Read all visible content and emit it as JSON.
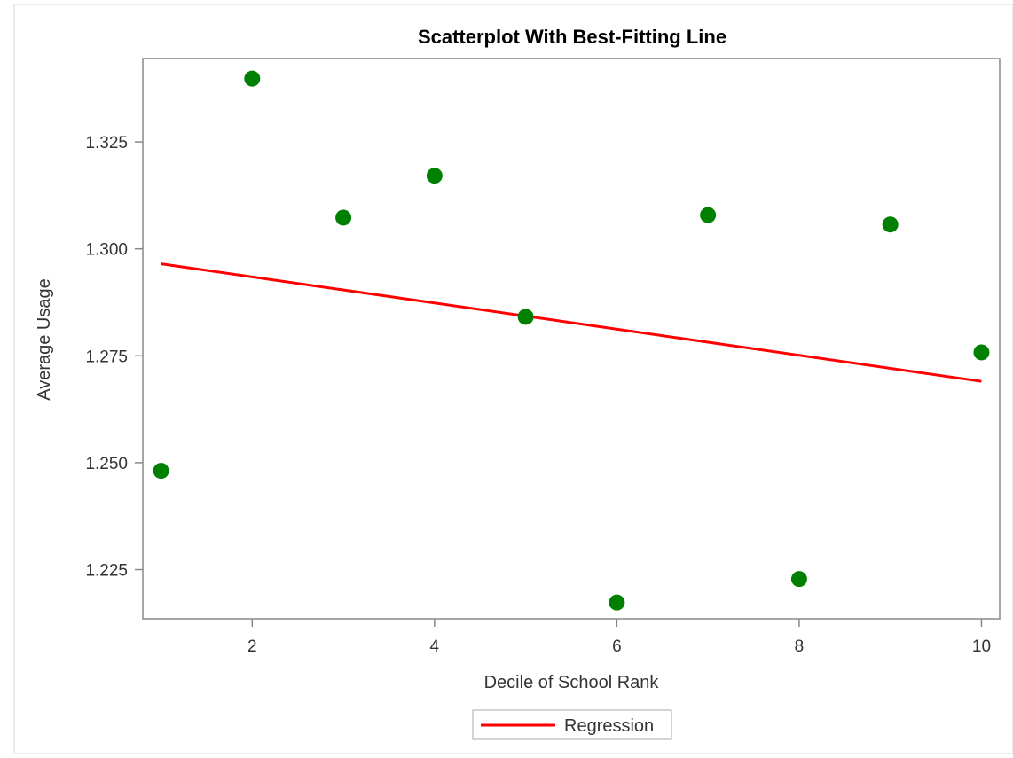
{
  "chart_data": {
    "type": "scatter",
    "title": "Scatterplot With Best-Fitting Line",
    "xlabel": "Decile of School Rank",
    "ylabel": "Average Usage",
    "xlim": [
      0.8,
      10.2
    ],
    "ylim": [
      1.2135,
      1.3445
    ],
    "x_ticks": [
      2,
      4,
      6,
      8,
      10
    ],
    "x_tick_labels": [
      "2",
      "4",
      "6",
      "8",
      "10"
    ],
    "y_ticks": [
      1.225,
      1.25,
      1.275,
      1.3,
      1.325
    ],
    "y_tick_labels": [
      "1.225",
      "1.250",
      "1.275",
      "1.300",
      "1.325"
    ],
    "grid": false,
    "legend_position": "bottom-center",
    "series": [
      {
        "kind": "scatter",
        "color": "#008000",
        "points": [
          {
            "x": 1,
            "y": 1.2481
          },
          {
            "x": 2,
            "y": 1.3398
          },
          {
            "x": 3,
            "y": 1.3073
          },
          {
            "x": 4,
            "y": 1.3171
          },
          {
            "x": 5,
            "y": 1.2841
          },
          {
            "x": 6,
            "y": 1.2173
          },
          {
            "x": 7,
            "y": 1.3079
          },
          {
            "x": 8,
            "y": 1.2228
          },
          {
            "x": 9,
            "y": 1.3057
          },
          {
            "x": 10,
            "y": 1.2758
          }
        ]
      },
      {
        "kind": "line",
        "name": "Regression",
        "color": "#ff0000",
        "points": [
          {
            "x": 1,
            "y": 1.2965
          },
          {
            "x": 10,
            "y": 1.269
          }
        ]
      }
    ]
  }
}
